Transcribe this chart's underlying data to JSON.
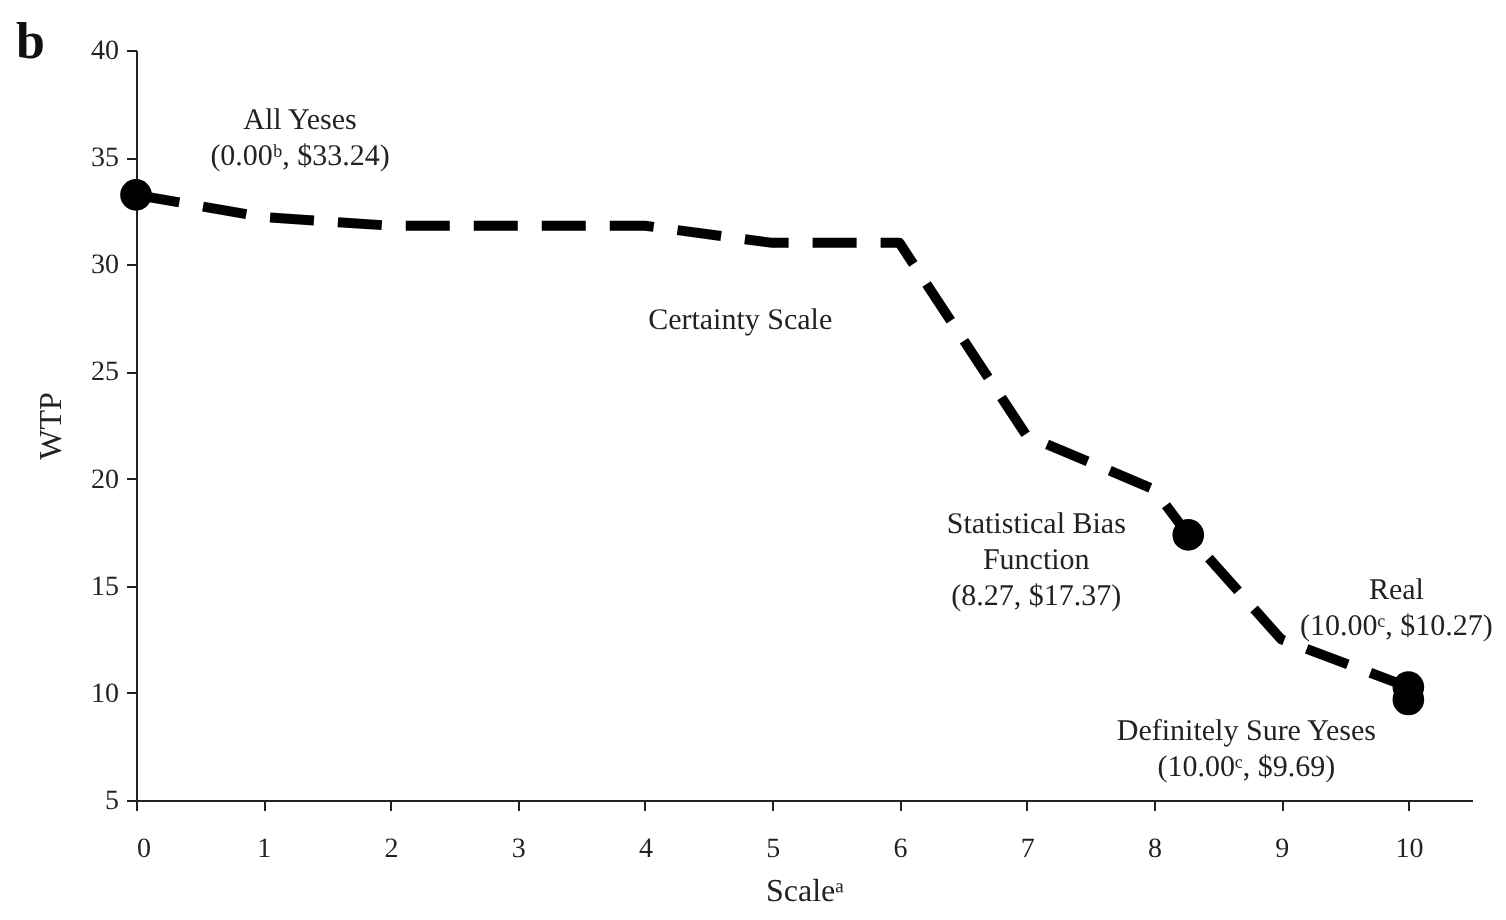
{
  "chart_data": {
    "type": "line",
    "title": "b",
    "xlabel": "Scaleᵃ",
    "ylabel": "WTP",
    "xlim": [
      0,
      10.5
    ],
    "ylim": [
      5,
      40
    ],
    "xticks": [
      0,
      1,
      2,
      3,
      4,
      5,
      6,
      7,
      8,
      9,
      10
    ],
    "yticks": [
      5,
      10,
      15,
      20,
      25,
      30,
      35,
      40
    ],
    "grid": false,
    "series": [
      {
        "color": "#000000",
        "line_style": "dashed",
        "marker": "none",
        "x": [
          0,
          1,
          2,
          3,
          4,
          5,
          6,
          7,
          8,
          8.27,
          9,
          10
        ],
        "values": [
          33.24,
          32.2,
          31.8,
          31.8,
          31.8,
          31,
          31,
          22,
          19.5,
          17.37,
          12.5,
          10.27
        ]
      },
      {
        "type": "scatter",
        "color": "#000000",
        "marker": "circle",
        "x": [
          0,
          8.27,
          10,
          10
        ],
        "values": [
          33.24,
          17.37,
          10.27,
          9.69
        ]
      }
    ],
    "annotations": [
      {
        "text": "All Yeses\n(0.00ᵇ, $33.24)",
        "x": 0,
        "y": 33.24
      },
      {
        "text": "Certainty Scale",
        "x": 5,
        "y": 31
      },
      {
        "text": "Statistical Bias\nFunction\n(8.27, $17.37)",
        "x": 8.27,
        "y": 17.37
      },
      {
        "text": "Real\n(10.00ᶜ, $10.27)",
        "x": 10,
        "y": 10.27
      },
      {
        "text": "Definitely Sure Yeses\n(10.00ᶜ, $9.69)",
        "x": 10,
        "y": 9.69
      }
    ]
  }
}
